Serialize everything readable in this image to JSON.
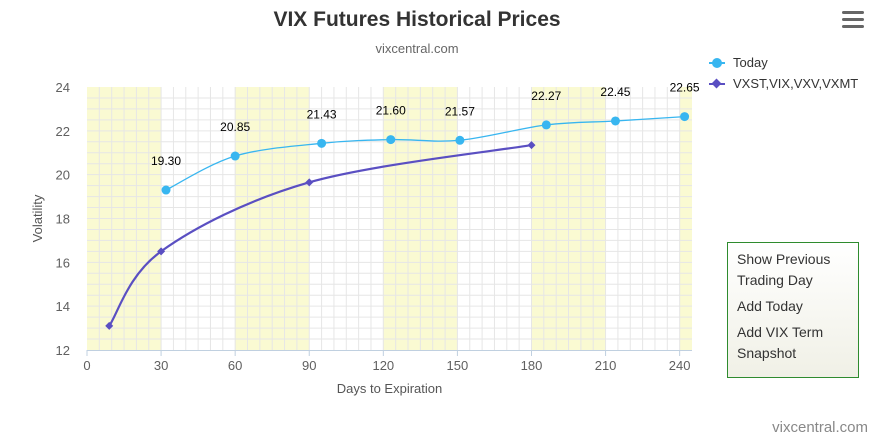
{
  "header": {
    "title": "VIX Futures Historical Prices",
    "subtitle": "vixcentral.com",
    "menu_icon": "hamburger-icon"
  },
  "legend": {
    "items": [
      {
        "label": "Today",
        "color": "#38b6f0",
        "marker": "circle"
      },
      {
        "label": "VXST,VIX,VXV,VXMT",
        "color": "#5a4fc2",
        "marker": "diamond"
      }
    ]
  },
  "actions": {
    "show_previous": "Show Previous Trading Day",
    "add_today": "Add Today",
    "add_vix_term": "Add VIX Term Snapshot"
  },
  "credit": "vixcentral.com",
  "colors": {
    "today": "#38b6f0",
    "term": "#5a4fc2",
    "band": "#fafad2",
    "grid": "#e6e6e6",
    "action_border": "#2e8b2e"
  },
  "chart_data": {
    "type": "line",
    "title": "VIX Futures Historical Prices",
    "subtitle": "vixcentral.com",
    "xlabel": "Days to Expiration",
    "ylabel": "Volatility",
    "xlim": [
      0,
      245
    ],
    "ylim": [
      12,
      24
    ],
    "x_ticks": [
      0,
      30,
      60,
      90,
      120,
      150,
      180,
      210,
      240
    ],
    "y_ticks": [
      12,
      14,
      16,
      18,
      20,
      22,
      24
    ],
    "grid": true,
    "legend_position": "top-right",
    "bands": [
      [
        0,
        30
      ],
      [
        60,
        90
      ],
      [
        120,
        150
      ],
      [
        180,
        210
      ],
      [
        240,
        245
      ]
    ],
    "series": [
      {
        "name": "Today",
        "color": "#38b6f0",
        "marker": "circle",
        "x": [
          32,
          60,
          95,
          123,
          151,
          186,
          214,
          242
        ],
        "y": [
          19.3,
          20.85,
          21.43,
          21.6,
          21.57,
          22.27,
          22.45,
          22.65
        ],
        "labels": [
          "19.30",
          "20.85",
          "21.43",
          "21.60",
          "21.57",
          "22.27",
          "22.45",
          "22.65"
        ]
      },
      {
        "name": "VXST,VIX,VXV,VXMT",
        "color": "#5a4fc2",
        "marker": "diamond",
        "x": [
          9,
          30,
          90,
          180
        ],
        "y": [
          13.1,
          16.5,
          19.65,
          21.35
        ]
      }
    ]
  }
}
